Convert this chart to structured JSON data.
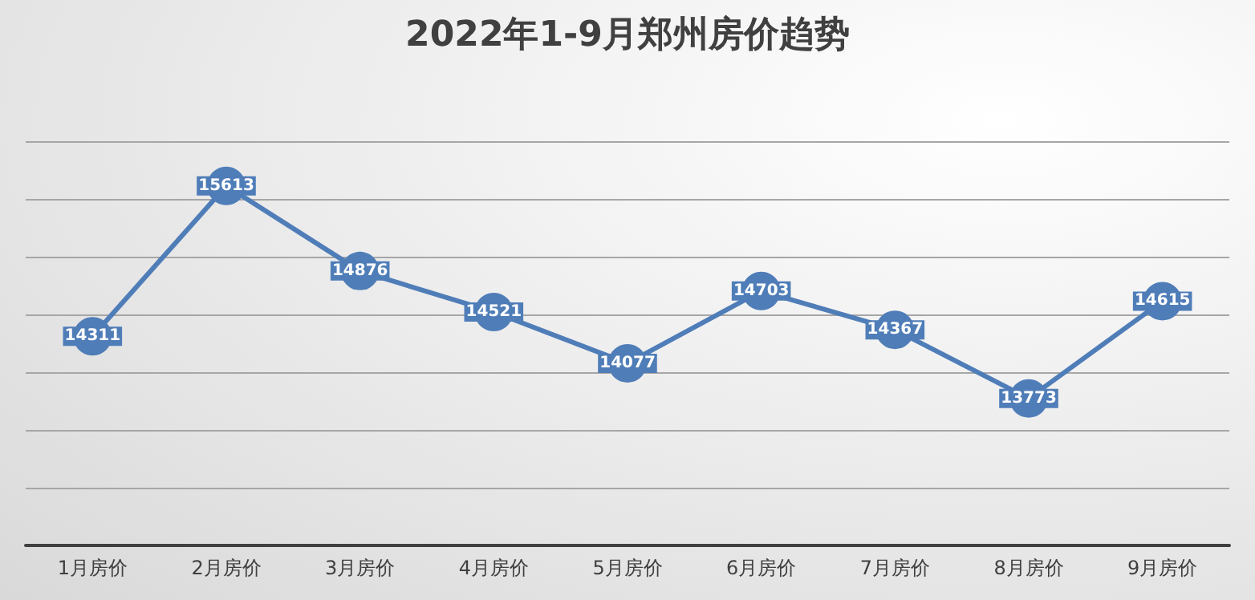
{
  "chart_data": {
    "type": "line",
    "title": "2022年1-9月郑州房价趋势",
    "categories": [
      "1月房价",
      "2月房价",
      "3月房价",
      "4月房价",
      "5月房价",
      "6月房价",
      "7月房价",
      "8月房价",
      "9月房价"
    ],
    "series": [
      {
        "color": "#4f7db8",
        "values": [
          14311,
          15613,
          14876,
          14521,
          14077,
          14703,
          14367,
          13773,
          14615
        ]
      }
    ],
    "ylim": [
      12500,
      16000
    ],
    "yticks": [
      {
        "value": 12500,
        "label": null
      },
      {
        "value": 13000,
        "label": null
      },
      {
        "value": 13500,
        "label": null
      },
      {
        "value": 14000,
        "label": null
      },
      {
        "value": 14500,
        "label": null
      },
      {
        "value": 15000,
        "label": null
      },
      {
        "value": 15500,
        "label": null
      },
      {
        "value": 16000,
        "label": null
      }
    ],
    "tick_labels": "x",
    "grid": "y",
    "data_labels": true,
    "marker": "circle",
    "line_style": "solid"
  }
}
